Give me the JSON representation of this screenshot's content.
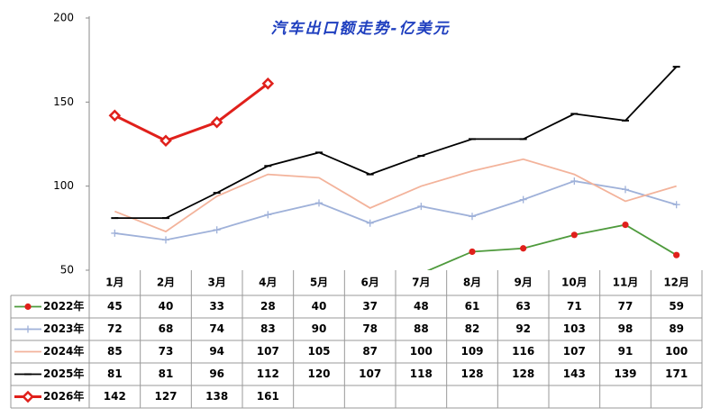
{
  "chart_data": {
    "type": "line",
    "title": "汽车出口额走势-亿美元",
    "categories": [
      "1月",
      "2月",
      "3月",
      "4月",
      "5月",
      "6月",
      "7月",
      "8月",
      "9月",
      "10月",
      "11月",
      "12月"
    ],
    "series": [
      {
        "name": "2022年",
        "color": "#4e9a3c",
        "marker": "circle",
        "marker_color": "#e0201b",
        "values": [
          45,
          40,
          33,
          28,
          40,
          37,
          48,
          61,
          63,
          71,
          77,
          59
        ]
      },
      {
        "name": "2023年",
        "color": "#9fb1d9",
        "marker": "plus",
        "marker_color": "#9fb1d9",
        "values": [
          72,
          68,
          74,
          83,
          90,
          78,
          88,
          82,
          92,
          103,
          98,
          89
        ]
      },
      {
        "name": "2024年",
        "color": "#f3b39b",
        "marker": "none",
        "marker_color": "#f3b39b",
        "values": [
          85,
          73,
          94,
          107,
          105,
          87,
          100,
          109,
          116,
          107,
          91,
          100
        ]
      },
      {
        "name": "2025年",
        "color": "#000000",
        "marker": "dash",
        "marker_color": "#000000",
        "values": [
          81,
          81,
          96,
          112,
          120,
          107,
          118,
          128,
          128,
          143,
          139,
          171
        ]
      },
      {
        "name": "2026年",
        "color": "#e0201b",
        "marker": "diamond",
        "marker_color": "#e0201b",
        "values": [
          142,
          127,
          138,
          161,
          null,
          null,
          null,
          null,
          null,
          null,
          null,
          null
        ]
      }
    ],
    "ylim": [
      50,
      200
    ],
    "yticks": [
      50,
      100,
      150,
      200
    ],
    "grid": false
  }
}
